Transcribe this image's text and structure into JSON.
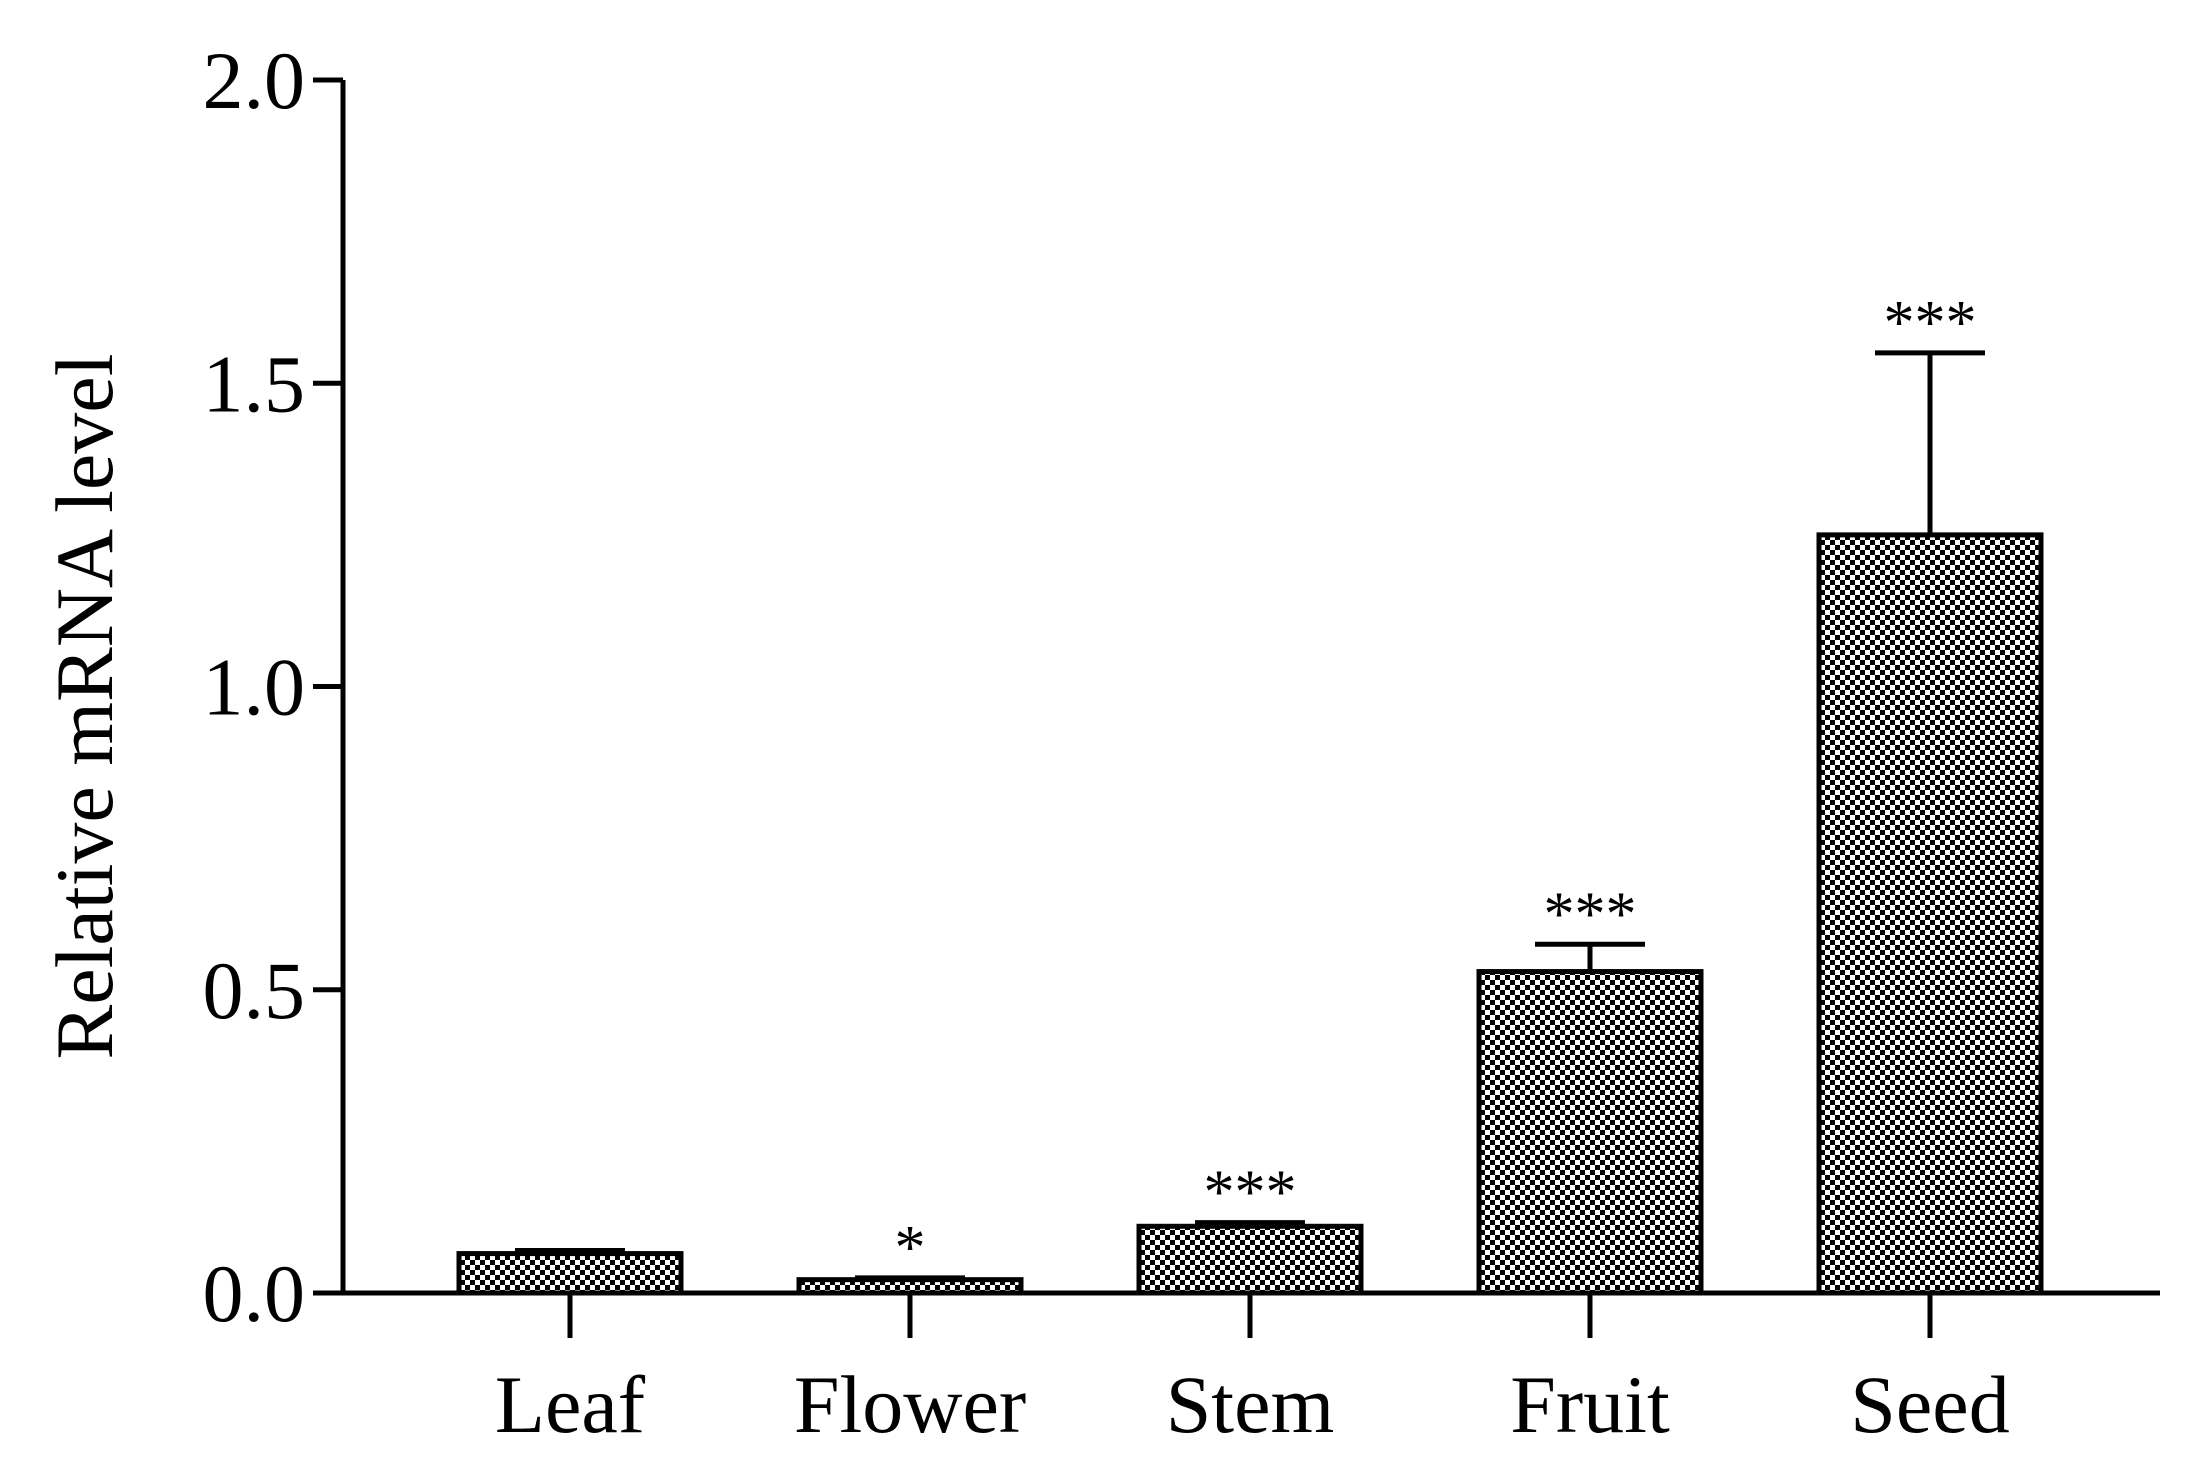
{
  "chart_data": {
    "type": "bar",
    "categories": [
      "Leaf",
      "Flower",
      "Stem",
      "Fruit",
      "Seed"
    ],
    "values": [
      0.065,
      0.022,
      0.11,
      0.53,
      1.25
    ],
    "errors": [
      0.005,
      0.003,
      0.006,
      0.045,
      0.3
    ],
    "significance": [
      "",
      "*",
      "***",
      "***",
      "***"
    ],
    "xlabel": "",
    "ylabel": "Relative mRNA level",
    "ylim": [
      0,
      2.0
    ],
    "yticks": [
      "0.0",
      "0.5",
      "1.0",
      "1.5",
      "2.0"
    ],
    "ytick_values": [
      0,
      0.5,
      1.0,
      1.5,
      2.0
    ],
    "grid": false,
    "legend": "none",
    "bar_fill": "checkerboard",
    "colors": {
      "bar_dark": "#000000",
      "bar_light": "#ffffff",
      "axis": "#000000"
    }
  }
}
